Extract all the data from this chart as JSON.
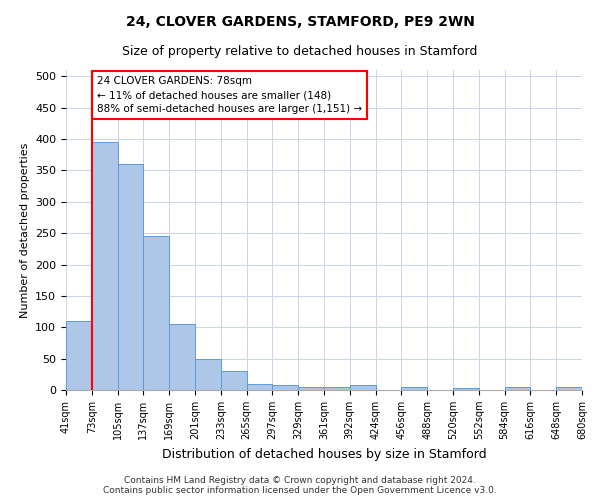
{
  "title": "24, CLOVER GARDENS, STAMFORD, PE9 2WN",
  "subtitle": "Size of property relative to detached houses in Stamford",
  "xlabel": "Distribution of detached houses by size in Stamford",
  "ylabel": "Number of detached properties",
  "bar_values": [
    110,
    395,
    360,
    245,
    105,
    50,
    30,
    10,
    8,
    5,
    5,
    8,
    0,
    5,
    0,
    3,
    0,
    5,
    0,
    5
  ],
  "xtick_labels": [
    "41sqm",
    "73sqm",
    "105sqm",
    "137sqm",
    "169sqm",
    "201sqm",
    "233sqm",
    "265sqm",
    "297sqm",
    "329sqm",
    "361sqm",
    "392sqm",
    "424sqm",
    "456sqm",
    "488sqm",
    "520sqm",
    "552sqm",
    "584sqm",
    "616sqm",
    "648sqm",
    "680sqm"
  ],
  "bar_color": "#aec6e8",
  "bar_edge_color": "#5b9bd5",
  "red_line_index": 1,
  "annotation_line1": "24 CLOVER GARDENS: 78sqm",
  "annotation_line2": "← 11% of detached houses are smaller (148)",
  "annotation_line3": "88% of semi-detached houses are larger (1,151) →",
  "ylim": [
    0,
    510
  ],
  "yticks": [
    0,
    50,
    100,
    150,
    200,
    250,
    300,
    350,
    400,
    450,
    500
  ],
  "footer_line1": "Contains HM Land Registry data © Crown copyright and database right 2024.",
  "footer_line2": "Contains public sector information licensed under the Open Government Licence v3.0.",
  "background_color": "#ffffff",
  "grid_color": "#c8d4e8",
  "title_fontsize": 10,
  "subtitle_fontsize": 9
}
